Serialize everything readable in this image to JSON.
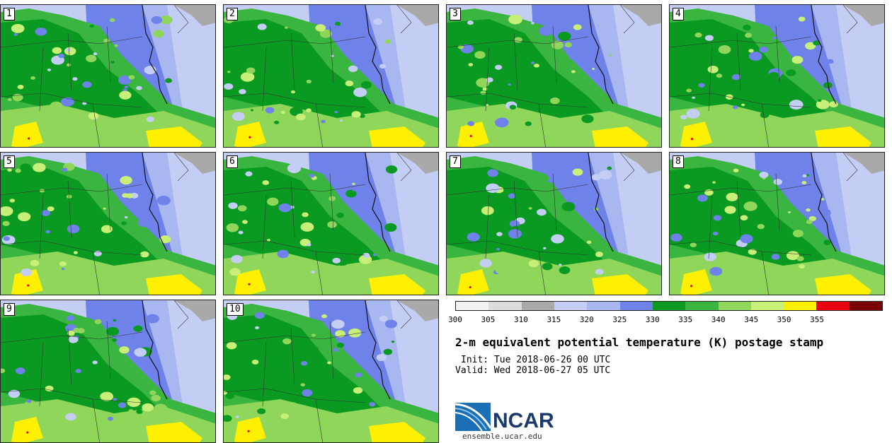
{
  "panels": [
    {
      "label": "1"
    },
    {
      "label": "2"
    },
    {
      "label": "3"
    },
    {
      "label": "4"
    },
    {
      "label": "5"
    },
    {
      "label": "6"
    },
    {
      "label": "7"
    },
    {
      "label": "8"
    },
    {
      "label": "9"
    },
    {
      "label": "10"
    }
  ],
  "colorbar": {
    "colors": [
      "#f2f2f2",
      "#dcdcdc",
      "#a9a9a9",
      "#c4cef5",
      "#a9b7f0",
      "#6e82ea",
      "#0a9a21",
      "#3ab53f",
      "#8fd65a",
      "#c8f078",
      "#ffef00",
      "#e8000e",
      "#7a0006"
    ],
    "ticks": [
      "300",
      "305",
      "310",
      "315",
      "320",
      "325",
      "330",
      "335",
      "340",
      "345",
      "350",
      "355"
    ]
  },
  "title": "2-m equivalent potential temperature (K) postage stamp",
  "init": "Init: Tue 2018-06-26 00 UTC",
  "valid": "Valid: Wed 2018-06-27 05 UTC",
  "logo": {
    "text": "NCAR",
    "url": "ensemble.ucar.edu"
  }
}
